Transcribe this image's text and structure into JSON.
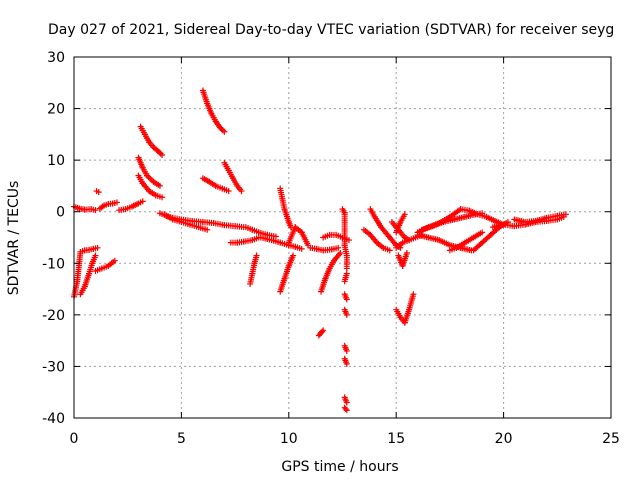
{
  "chart_data": {
    "type": "scatter",
    "title": "Day 027 of 2021, Sidereal Day-to-day VTEC variation (SDTVAR) for receiver seyg",
    "xlabel": "GPS time / hours",
    "ylabel": "SDTVAR / TECUs",
    "xlim": [
      0,
      25
    ],
    "ylim": [
      -40,
      30
    ],
    "xticks": [
      "0",
      "5",
      "10",
      "15",
      "20",
      "25"
    ],
    "yticks": [
      "30",
      "20",
      "10",
      "0",
      "-10",
      "-20",
      "-30",
      "-40"
    ],
    "grid": true,
    "marker": "+",
    "color": "#ff0000",
    "tracks": [
      {
        "x": [
          0.0,
          0.25,
          0.5,
          0.8,
          1.0
        ],
        "y": [
          1.0,
          0.6,
          0.4,
          0.5,
          0.3
        ]
      },
      {
        "x": [
          0.0,
          0.15,
          0.3,
          0.5,
          0.7,
          0.9,
          1.1
        ],
        "y": [
          -16.5,
          -13.5,
          -7.8,
          -7.5,
          -7.4,
          -7.2,
          -7.0
        ]
      },
      {
        "x": [
          0.3,
          0.5,
          0.7,
          0.85,
          1.0
        ],
        "y": [
          -16.0,
          -14.5,
          -12.0,
          -10.0,
          -8.5
        ]
      },
      {
        "x": [
          1.05,
          1.15
        ],
        "y": [
          4.0,
          3.8
        ]
      },
      {
        "x": [
          1.0,
          1.3,
          1.6,
          1.9
        ],
        "y": [
          -11.5,
          -11.0,
          -10.5,
          -9.5
        ]
      },
      {
        "x": [
          1.2,
          1.4,
          1.6,
          1.8,
          2.0
        ],
        "y": [
          0.6,
          1.2,
          1.5,
          1.6,
          1.8
        ]
      },
      {
        "x": [
          2.1,
          2.4,
          2.7,
          3.0,
          3.2
        ],
        "y": [
          0.3,
          0.5,
          1.0,
          1.6,
          2.0
        ]
      },
      {
        "x": [
          3.1,
          3.3,
          3.5,
          3.7,
          3.9,
          4.1
        ],
        "y": [
          16.5,
          15.0,
          13.5,
          12.5,
          11.8,
          11.0
        ]
      },
      {
        "x": [
          3.0,
          3.2,
          3.4,
          3.7,
          4.0
        ],
        "y": [
          10.5,
          8.5,
          7.0,
          5.8,
          5.0
        ]
      },
      {
        "x": [
          3.0,
          3.2,
          3.5,
          3.8,
          4.1
        ],
        "y": [
          7.0,
          5.5,
          4.0,
          3.2,
          2.8
        ]
      },
      {
        "x": [
          4.0,
          4.3,
          4.6,
          5.0,
          5.5,
          6.0,
          6.5,
          7.0,
          7.5,
          7.9
        ],
        "y": [
          -0.3,
          -0.8,
          -1.2,
          -1.5,
          -1.8,
          -2.0,
          -2.2,
          -2.6,
          -2.8,
          -3.0
        ]
      },
      {
        "x": [
          4.2,
          4.6,
          5.0,
          5.4,
          5.8,
          6.2
        ],
        "y": [
          -0.5,
          -1.5,
          -2.0,
          -2.5,
          -3.0,
          -3.5
        ]
      },
      {
        "x": [
          6.0,
          6.2,
          6.4,
          6.6,
          6.8,
          7.0
        ],
        "y": [
          23.5,
          21.0,
          19.0,
          17.5,
          16.3,
          15.5
        ]
      },
      {
        "x": [
          6.0,
          6.3,
          6.6,
          6.9,
          7.2
        ],
        "y": [
          6.5,
          5.8,
          5.0,
          4.5,
          4.0
        ]
      },
      {
        "x": [
          7.0,
          7.2,
          7.4,
          7.6,
          7.8
        ],
        "y": [
          9.5,
          8.0,
          6.5,
          5.0,
          4.0
        ]
      },
      {
        "x": [
          7.3,
          7.6,
          7.9,
          8.3,
          8.6
        ],
        "y": [
          -6.0,
          -6.0,
          -5.8,
          -5.5,
          -5.0
        ]
      },
      {
        "x": [
          8.0,
          8.3,
          8.6,
          9.0,
          9.4
        ],
        "y": [
          -3.0,
          -3.5,
          -4.0,
          -4.5,
          -4.8
        ]
      },
      {
        "x": [
          8.2,
          8.3,
          8.4,
          8.5
        ],
        "y": [
          -14.0,
          -12.0,
          -10.0,
          -8.5
        ]
      },
      {
        "x": [
          8.7,
          9.0,
          9.3,
          9.6,
          10.0,
          10.3,
          10.6
        ],
        "y": [
          -5.0,
          -5.3,
          -5.6,
          -6.0,
          -6.5,
          -6.8,
          -7.2
        ]
      },
      {
        "x": [
          9.6,
          9.7,
          9.8,
          10.0,
          10.1
        ],
        "y": [
          4.5,
          2.5,
          0.5,
          -2.0,
          -3.0
        ]
      },
      {
        "x": [
          9.6,
          9.8,
          10.0,
          10.2
        ],
        "y": [
          -15.5,
          -13.0,
          -10.5,
          -8.5
        ]
      },
      {
        "x": [
          10.0,
          10.3,
          10.6,
          10.9
        ],
        "y": [
          -6.0,
          -3.0,
          -4.0,
          -6.5
        ]
      },
      {
        "x": [
          11.0,
          11.3,
          11.6,
          12.0,
          12.3
        ],
        "y": [
          -7.0,
          -7.2,
          -7.5,
          -7.3,
          -7.0
        ]
      },
      {
        "x": [
          11.5,
          11.7,
          11.9,
          12.1,
          12.4
        ],
        "y": [
          -15.5,
          -13.0,
          -11.0,
          -9.5,
          -8.0
        ]
      },
      {
        "x": [
          11.4,
          11.5,
          11.6
        ],
        "y": [
          -24.0,
          -23.5,
          -23.0
        ]
      },
      {
        "x": [
          11.6,
          11.9,
          12.2,
          12.5,
          12.8
        ],
        "y": [
          -5.0,
          -4.5,
          -4.5,
          -5.0,
          -5.5
        ]
      },
      {
        "x": [
          12.5,
          12.6,
          12.6,
          12.7,
          12.7
        ],
        "y": [
          0.5,
          -0.2,
          -6.5,
          -8.5,
          -11.0
        ]
      },
      {
        "x": [
          12.6,
          12.7
        ],
        "y": [
          -13.5,
          -12.0
        ]
      },
      {
        "x": [
          12.6,
          12.7
        ],
        "y": [
          -16.0,
          -17.0
        ]
      },
      {
        "x": [
          12.6,
          12.7
        ],
        "y": [
          -19.0,
          -20.0
        ]
      },
      {
        "x": [
          12.6,
          12.7
        ],
        "y": [
          -26.0,
          -27.0
        ]
      },
      {
        "x": [
          12.6,
          12.7
        ],
        "y": [
          -28.5,
          -29.5
        ]
      },
      {
        "x": [
          12.6,
          12.7
        ],
        "y": [
          -36.0,
          -37.0
        ]
      },
      {
        "x": [
          12.6,
          12.7
        ],
        "y": [
          -38.0,
          -38.5
        ]
      },
      {
        "x": [
          13.8,
          14.0,
          14.3,
          14.6,
          15.0,
          15.2
        ],
        "y": [
          0.5,
          -1.0,
          -3.0,
          -4.5,
          -6.5,
          -7.0
        ]
      },
      {
        "x": [
          14.8,
          15.0,
          15.2,
          15.4,
          15.6
        ],
        "y": [
          -2.0,
          -3.0,
          -4.0,
          -5.0,
          -5.5
        ]
      },
      {
        "x": [
          13.5,
          13.8,
          14.1,
          14.4,
          14.7
        ],
        "y": [
          -3.5,
          -4.5,
          -6.0,
          -7.0,
          -7.5
        ]
      },
      {
        "x": [
          15.0,
          15.3,
          15.6,
          15.9,
          16.2
        ],
        "y": [
          -7.0,
          -6.0,
          -5.5,
          -5.0,
          -4.5
        ]
      },
      {
        "x": [
          15.0,
          15.2,
          15.4,
          15.6,
          15.8
        ],
        "y": [
          -19.0,
          -20.5,
          -21.5,
          -19.0,
          -16.0
        ]
      },
      {
        "x": [
          15.0,
          15.2,
          15.4
        ],
        "y": [
          -4.0,
          -2.0,
          -0.5
        ]
      },
      {
        "x": [
          15.1,
          15.3,
          15.5
        ],
        "y": [
          -8.5,
          -10.5,
          -8.0
        ]
      },
      {
        "x": [
          16.0,
          16.5,
          17.0,
          17.5,
          18.0,
          18.5
        ],
        "y": [
          -4.5,
          -5.0,
          -5.5,
          -6.5,
          -7.0,
          -7.5
        ]
      },
      {
        "x": [
          16.2,
          16.7,
          17.2,
          17.7,
          18.2,
          18.7,
          19.0
        ],
        "y": [
          -3.5,
          -2.8,
          -2.0,
          -1.5,
          -1.0,
          -0.5,
          -0.3
        ]
      },
      {
        "x": [
          16.0,
          16.5,
          17.0,
          17.5,
          18.0
        ],
        "y": [
          -4.0,
          -3.0,
          -2.2,
          -1.0,
          0.5
        ]
      },
      {
        "x": [
          17.5,
          17.8,
          18.2,
          18.6,
          19.0
        ],
        "y": [
          -7.5,
          -7.0,
          -6.0,
          -5.0,
          -4.0
        ]
      },
      {
        "x": [
          18.0,
          18.4,
          18.8,
          19.2,
          19.6,
          20.0
        ],
        "y": [
          0.5,
          0.2,
          -0.5,
          -1.0,
          -1.8,
          -2.5
        ]
      },
      {
        "x": [
          18.6,
          19.0,
          19.4,
          19.8,
          20.2
        ],
        "y": [
          -7.5,
          -6.0,
          -4.5,
          -3.0,
          -2.0
        ]
      },
      {
        "x": [
          19.5,
          20.0,
          20.5,
          21.0,
          21.5,
          22.0,
          22.5,
          22.8
        ],
        "y": [
          -3.0,
          -2.5,
          -2.8,
          -2.5,
          -2.0,
          -1.8,
          -1.5,
          -1.0
        ]
      },
      {
        "x": [
          20.5,
          21.0,
          21.5,
          22.0,
          22.5,
          22.9
        ],
        "y": [
          -1.5,
          -2.0,
          -1.8,
          -1.2,
          -0.8,
          -0.5
        ]
      }
    ]
  }
}
